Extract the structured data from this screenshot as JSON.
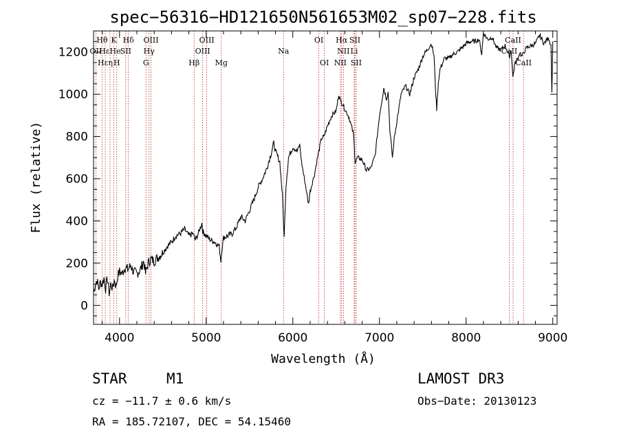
{
  "chart_data": {
    "type": "line",
    "title": "spec−56316−HD121650N561653M02_sp07−228.fits",
    "xlabel": "Wavelength (Å)",
    "ylabel": "Flux (relative)",
    "xlim": [
      3700,
      9050
    ],
    "ylim": [
      -90,
      1300
    ],
    "xticks": [
      4000,
      5000,
      6000,
      7000,
      8000,
      9000
    ],
    "yticks": [
      0,
      200,
      400,
      600,
      800,
      1000,
      1200
    ],
    "series": [
      {
        "name": "flux",
        "x": [
          3700,
          3720,
          3740,
          3760,
          3780,
          3800,
          3820,
          3840,
          3860,
          3880,
          3900,
          3920,
          3940,
          3960,
          3980,
          4000,
          4030,
          4060,
          4100,
          4130,
          4160,
          4200,
          4240,
          4280,
          4300,
          4330,
          4360,
          4400,
          4450,
          4500,
          4550,
          4600,
          4650,
          4700,
          4750,
          4800,
          4850,
          4870,
          4900,
          4950,
          4960,
          5000,
          5050,
          5100,
          5150,
          5170,
          5180,
          5200,
          5250,
          5300,
          5350,
          5400,
          5450,
          5500,
          5550,
          5600,
          5650,
          5700,
          5750,
          5780,
          5800,
          5830,
          5850,
          5880,
          5900,
          5920,
          5950,
          6000,
          6050,
          6080,
          6100,
          6150,
          6180,
          6200,
          6230,
          6250,
          6280,
          6300,
          6330,
          6360,
          6400,
          6450,
          6500,
          6530,
          6550,
          6563,
          6580,
          6600,
          6650,
          6700,
          6720,
          6750,
          6800,
          6850,
          6900,
          6950,
          7000,
          7050,
          7080,
          7100,
          7120,
          7150,
          7170,
          7200,
          7250,
          7300,
          7350,
          7400,
          7450,
          7500,
          7550,
          7600,
          7630,
          7650,
          7660,
          7680,
          7700,
          7750,
          7800,
          7850,
          7900,
          7950,
          8000,
          8050,
          8100,
          8150,
          8180,
          8200,
          8250,
          8300,
          8350,
          8400,
          8450,
          8500,
          8520,
          8540,
          8560,
          8580,
          8600,
          8620,
          8640,
          8660,
          8680,
          8700,
          8750,
          8800,
          8850,
          8900,
          8950,
          8980,
          8990,
          9000
        ],
        "y": [
          60,
          100,
          120,
          80,
          110,
          100,
          130,
          80,
          130,
          60,
          100,
          80,
          120,
          90,
          140,
          160,
          150,
          180,
          170,
          190,
          160,
          150,
          170,
          210,
          150,
          200,
          220,
          210,
          230,
          250,
          280,
          300,
          330,
          340,
          360,
          330,
          340,
          310,
          330,
          390,
          350,
          330,
          310,
          300,
          280,
          210,
          260,
          320,
          330,
          340,
          370,
          420,
          400,
          450,
          500,
          560,
          600,
          650,
          720,
          770,
          730,
          700,
          680,
          520,
          320,
          560,
          700,
          750,
          730,
          760,
          680,
          560,
          480,
          540,
          590,
          620,
          690,
          730,
          790,
          800,
          850,
          900,
          920,
          1000,
          970,
          960,
          950,
          930,
          890,
          810,
          680,
          700,
          690,
          640,
          650,
          710,
          900,
          1030,
          980,
          1010,
          830,
          700,
          790,
          870,
          1000,
          1040,
          1000,
          1080,
          1120,
          1180,
          1210,
          1240,
          1180,
          1000,
          930,
          1060,
          1120,
          1170,
          1170,
          1190,
          1200,
          1220,
          1240,
          1250,
          1250,
          1260,
          1190,
          1290,
          1260,
          1270,
          1220,
          1210,
          1230,
          1180,
          1210,
          1080,
          1140,
          1160,
          1170,
          1200,
          1180,
          1190,
          1210,
          1220,
          1230,
          1240,
          1280,
          1240,
          1270,
          1230,
          1000,
          1250
        ]
      }
    ],
    "lines": [
      {
        "name": "Hθ",
        "wl": 3798,
        "row": 1
      },
      {
        "name": "OII",
        "wl": 3727,
        "row": 2
      },
      {
        "name": "HεHe",
        "wl": 3890,
        "row": 2
      },
      {
        "name": "K",
        "wl": 3934,
        "row": 1
      },
      {
        "name": "Hδ",
        "wl": 4102,
        "row": 1
      },
      {
        "name": "OIII",
        "wl": 4363,
        "row": 1
      },
      {
        "name": "SII",
        "wl": 4072,
        "row": 2
      },
      {
        "name": "Hεη",
        "wl": 3835,
        "row": 3
      },
      {
        "name": "H",
        "wl": 3968,
        "row": 3
      },
      {
        "name": "Hγ",
        "wl": 4341,
        "row": 2
      },
      {
        "name": "G",
        "wl": 4305,
        "row": 3
      },
      {
        "name": "OIII",
        "wl": 5007,
        "row": 1
      },
      {
        "name": "OIII",
        "wl": 4959,
        "row": 2
      },
      {
        "name": "Hβ",
        "wl": 4861,
        "row": 3
      },
      {
        "name": "Mg",
        "wl": 5175,
        "row": 3
      },
      {
        "name": "Na",
        "wl": 5893,
        "row": 2
      },
      {
        "name": "OI",
        "wl": 6300,
        "row": 1
      },
      {
        "name": "OI",
        "wl": 6364,
        "row": 3
      },
      {
        "name": "Hα",
        "wl": 6563,
        "row": 1
      },
      {
        "name": "SII",
        "wl": 6716,
        "row": 1
      },
      {
        "name": "NII",
        "wl": 6584,
        "row": 2
      },
      {
        "name": "Li",
        "wl": 6708,
        "row": 2
      },
      {
        "name": "NII",
        "wl": 6548,
        "row": 3
      },
      {
        "name": "SII",
        "wl": 6731,
        "row": 3
      },
      {
        "name": "CaII",
        "wl": 8542,
        "row": 1
      },
      {
        "name": "CaII",
        "wl": 8498,
        "row": 2
      },
      {
        "name": "CaII",
        "wl": 8662,
        "row": 3
      }
    ]
  },
  "info": {
    "object_class": "STAR",
    "subclass": "M1",
    "survey": "LAMOST DR3",
    "cz": "cz = −11.7 ± 0.6 km/s",
    "obs_date": "Obs−Date: 20130123",
    "coords": "RA = 185.72107, DEC =  54.15460"
  }
}
